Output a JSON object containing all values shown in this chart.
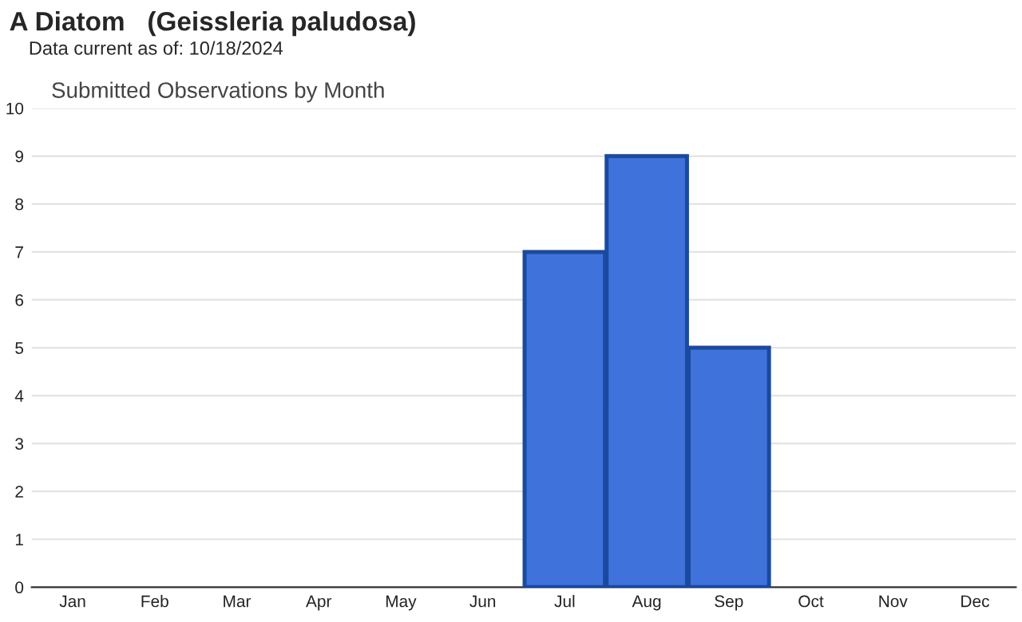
{
  "chart_data": {
    "type": "bar",
    "title": "A Diatom   (Geissleria paludosa)",
    "subtitle": "Data current as of: 10/18/2024",
    "annotations": [
      "Submitted Observations by Month"
    ],
    "categories": [
      "Jan",
      "Feb",
      "Mar",
      "Apr",
      "May",
      "Jun",
      "Jul",
      "Aug",
      "Sep",
      "Oct",
      "Nov",
      "Dec"
    ],
    "values": [
      0,
      0,
      0,
      0,
      0,
      0,
      7,
      9,
      5,
      0,
      0,
      0
    ],
    "color": "#3f73db",
    "ylim": [
      0,
      10
    ],
    "yticks": [
      0,
      1,
      2,
      3,
      4,
      5,
      6,
      7,
      8,
      9,
      10
    ],
    "grid": "y"
  }
}
